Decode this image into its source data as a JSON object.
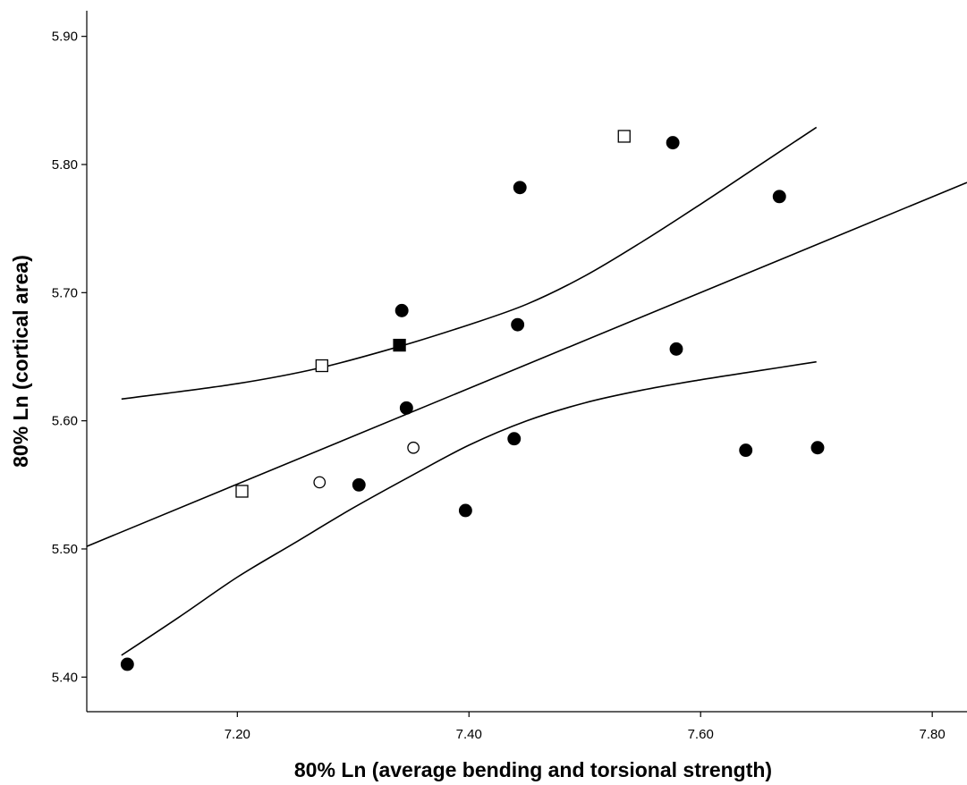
{
  "chart_data": {
    "type": "scatter",
    "xlabel": "80% Ln (average bending and torsional strength)",
    "ylabel": "80% Ln (cortical area)",
    "xlim": [
      7.07,
      7.83
    ],
    "ylim": [
      5.373,
      5.92
    ],
    "x_ticks": [
      7.2,
      7.4,
      7.6,
      7.8
    ],
    "x_tick_labels": [
      "7.20",
      "7.40",
      "7.60",
      "7.80"
    ],
    "y_ticks": [
      5.4,
      5.5,
      5.6,
      5.7,
      5.8,
      5.9
    ],
    "y_tick_labels": [
      "5.40",
      "5.50",
      "5.60",
      "5.70",
      "5.80",
      "5.90"
    ],
    "grid": false,
    "legend": "none",
    "points": [
      {
        "x": 7.105,
        "y": 5.41,
        "marker": "filled-circle"
      },
      {
        "x": 7.204,
        "y": 5.545,
        "marker": "open-square"
      },
      {
        "x": 7.271,
        "y": 5.552,
        "marker": "open-circle"
      },
      {
        "x": 7.273,
        "y": 5.643,
        "marker": "open-square"
      },
      {
        "x": 7.305,
        "y": 5.55,
        "marker": "filled-circle"
      },
      {
        "x": 7.34,
        "y": 5.659,
        "marker": "filled-square"
      },
      {
        "x": 7.342,
        "y": 5.686,
        "marker": "filled-circle"
      },
      {
        "x": 7.346,
        "y": 5.61,
        "marker": "filled-circle"
      },
      {
        "x": 7.352,
        "y": 5.579,
        "marker": "open-circle"
      },
      {
        "x": 7.397,
        "y": 5.53,
        "marker": "filled-circle"
      },
      {
        "x": 7.439,
        "y": 5.586,
        "marker": "filled-circle"
      },
      {
        "x": 7.442,
        "y": 5.675,
        "marker": "filled-circle"
      },
      {
        "x": 7.444,
        "y": 5.782,
        "marker": "filled-circle"
      },
      {
        "x": 7.534,
        "y": 5.822,
        "marker": "open-square"
      },
      {
        "x": 7.576,
        "y": 5.817,
        "marker": "filled-circle"
      },
      {
        "x": 7.579,
        "y": 5.656,
        "marker": "filled-circle"
      },
      {
        "x": 7.639,
        "y": 5.577,
        "marker": "filled-circle"
      },
      {
        "x": 7.668,
        "y": 5.775,
        "marker": "filled-circle"
      },
      {
        "x": 7.701,
        "y": 5.579,
        "marker": "filled-circle"
      }
    ],
    "fit_line": {
      "x": [
        7.07,
        7.83
      ],
      "y": [
        5.502,
        5.786
      ]
    },
    "ci_upper": {
      "x": [
        7.1,
        7.2,
        7.27,
        7.34,
        7.4,
        7.45,
        7.5,
        7.55,
        7.6,
        7.65,
        7.7
      ],
      "y": [
        5.617,
        5.629,
        5.641,
        5.658,
        5.675,
        5.691,
        5.713,
        5.74,
        5.769,
        5.799,
        5.829
      ]
    },
    "ci_lower": {
      "x": [
        7.1,
        7.15,
        7.2,
        7.25,
        7.3,
        7.35,
        7.4,
        7.45,
        7.5,
        7.55,
        7.6,
        7.65,
        7.7
      ],
      "y": [
        5.417,
        5.447,
        5.478,
        5.505,
        5.532,
        5.557,
        5.581,
        5.6,
        5.614,
        5.624,
        5.632,
        5.639,
        5.646
      ]
    }
  }
}
